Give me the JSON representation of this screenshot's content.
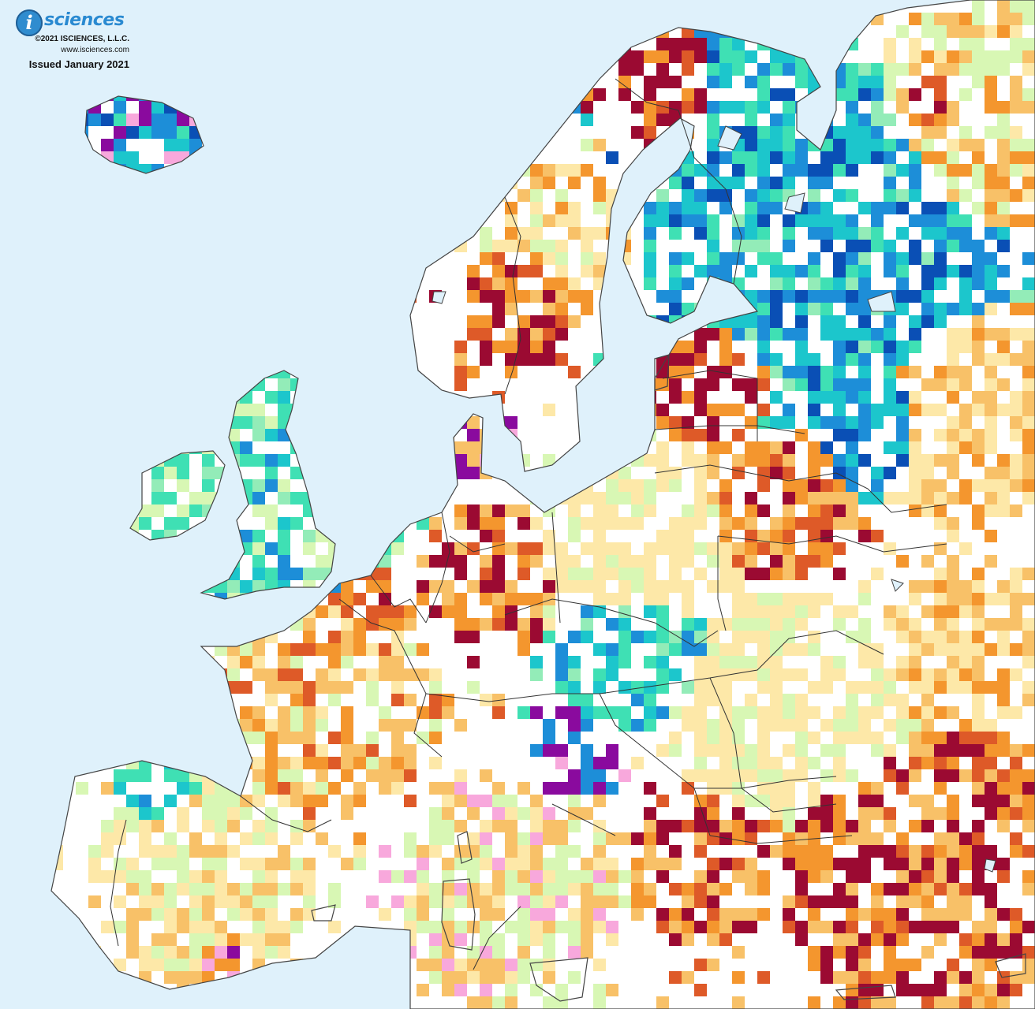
{
  "branding": {
    "logo_letter": "i",
    "logo_word": "sciences",
    "copyright": "©2021 ISCIENCES, L.L.C.",
    "website": "www.isciences.com",
    "issued": "Issued January 2021"
  },
  "colors": {
    "water": "#dff1fb",
    "land_base": "#ffffff",
    "coast": "#555555",
    "border": "#333333",
    "lake": "#dff1fb",
    "palette": {
      "r": "#9b0a32",
      "o": "#de5a28",
      "m": "#f4962e",
      "y": "#f8c168",
      "p": "#fde8a8",
      "l": "#d8f7b4",
      "g": "#93ecb8",
      "t": "#3fe0b4",
      "c": "#1cc6cc",
      "b": "#1d8ed8",
      "d": "#0a4fb5",
      "k": "#f8a8dc",
      "u": "#8a0a9e",
      "n": "#b4b4b4"
    }
  }
}
